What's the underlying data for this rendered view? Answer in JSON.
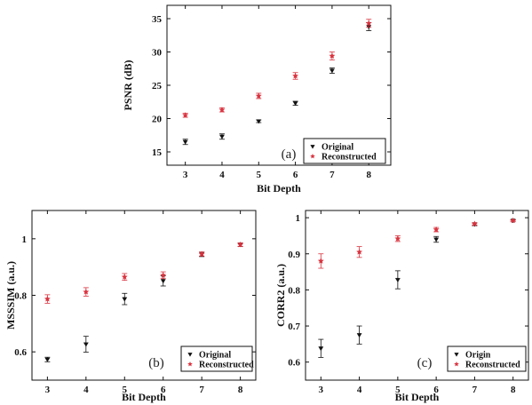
{
  "chart_data": [
    {
      "type": "scatter",
      "panel_label": "(a)",
      "xlabel": "Bit Depth",
      "ylabel": "PSNR (dB)",
      "xlim": [
        2.5,
        8.6
      ],
      "ylim": [
        13,
        37
      ],
      "xticks": [
        3,
        4,
        5,
        6,
        7,
        8
      ],
      "yticks": [
        15,
        20,
        25,
        30,
        35
      ],
      "legend_placement": "bottom-right",
      "series": [
        {
          "name": "Original",
          "color": "#111111",
          "marker": "triangle-down",
          "x": [
            3,
            4,
            5,
            6,
            7,
            8
          ],
          "y": [
            16.5,
            17.3,
            19.6,
            22.3,
            27.2,
            33.8
          ],
          "err": [
            0.4,
            0.4,
            0.2,
            0.3,
            0.4,
            0.6
          ]
        },
        {
          "name": "Reconstructed",
          "color": "#d9333f",
          "marker": "star",
          "x": [
            3,
            4,
            5,
            6,
            7,
            8
          ],
          "y": [
            20.5,
            21.3,
            23.4,
            26.4,
            29.4,
            34.3
          ],
          "err": [
            0.3,
            0.3,
            0.4,
            0.5,
            0.6,
            0.6
          ]
        }
      ]
    },
    {
      "type": "scatter",
      "panel_label": "(b)",
      "xlabel": "Bit Depth",
      "ylabel": "MSSSIM (a.u.)",
      "xlim": [
        2.6,
        8.4
      ],
      "ylim": [
        0.5,
        1.1
      ],
      "xticks": [
        3,
        4,
        5,
        6,
        7,
        8
      ],
      "yticks": [
        0.6,
        0.8,
        1.0
      ],
      "legend_placement": "bottom-right",
      "series": [
        {
          "name": "Original",
          "color": "#111111",
          "marker": "triangle-down",
          "x": [
            3,
            4,
            5,
            6,
            7,
            8
          ],
          "y": [
            0.573,
            0.627,
            0.787,
            0.851,
            0.945,
            0.979
          ],
          "err": [
            0.008,
            0.028,
            0.02,
            0.018,
            0.008,
            0.006
          ]
        },
        {
          "name": "Reconstructed",
          "color": "#d9333f",
          "marker": "star",
          "x": [
            3,
            4,
            5,
            6,
            7,
            8
          ],
          "y": [
            0.787,
            0.812,
            0.865,
            0.871,
            0.946,
            0.979
          ],
          "err": [
            0.015,
            0.015,
            0.012,
            0.012,
            0.007,
            0.006
          ]
        }
      ]
    },
    {
      "type": "scatter",
      "panel_label": "(c)",
      "xlabel": "Bit Depth",
      "ylabel": "CORR2 (a.u.)",
      "xlim": [
        2.6,
        8.4
      ],
      "ylim": [
        0.55,
        1.02
      ],
      "xticks": [
        3,
        4,
        5,
        6,
        7,
        8
      ],
      "yticks": [
        0.6,
        0.7,
        0.8,
        0.9,
        1.0
      ],
      "legend_placement": "bottom-right",
      "series": [
        {
          "name": "Origin",
          "color": "#111111",
          "marker": "triangle-down",
          "x": [
            3,
            4,
            5,
            6,
            7,
            8
          ],
          "y": [
            0.638,
            0.675,
            0.828,
            0.94,
            0.982,
            0.992
          ],
          "err": [
            0.025,
            0.025,
            0.025,
            0.008,
            0.004,
            0.002
          ]
        },
        {
          "name": "Reconstructed",
          "color": "#d9333f",
          "marker": "star",
          "x": [
            3,
            4,
            5,
            6,
            7,
            8
          ],
          "y": [
            0.88,
            0.905,
            0.942,
            0.967,
            0.983,
            0.992
          ],
          "err": [
            0.02,
            0.015,
            0.008,
            0.006,
            0.003,
            0.002
          ]
        }
      ]
    }
  ]
}
